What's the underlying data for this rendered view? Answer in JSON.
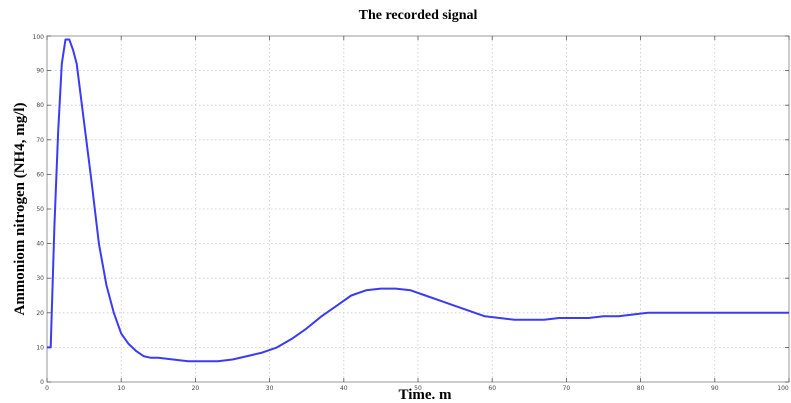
{
  "chart_data": {
    "type": "line",
    "title": "The recorded signal",
    "xlabel": "Time. m",
    "ylabel": "Ammoniom nitrogen (NH4, mg/l)",
    "xlim": [
      0,
      100
    ],
    "ylim": [
      0,
      100
    ],
    "xticks": [
      0,
      10,
      20,
      30,
      40,
      50,
      60,
      70,
      80,
      90,
      100
    ],
    "yticks": [
      0,
      10,
      20,
      30,
      40,
      50,
      60,
      70,
      80,
      90,
      100
    ],
    "xtick_labels": [
      "0",
      "10",
      "20",
      "30",
      "40",
      "50",
      "60",
      "70",
      "80",
      "90",
      "100"
    ],
    "ytick_labels": [
      "0",
      "10",
      "20",
      "30",
      "40",
      "50",
      "60",
      "70",
      "80",
      "90",
      "100"
    ],
    "grid": true,
    "color": "#3b3bf5",
    "series": [
      {
        "x": [
          0,
          0.5,
          1,
          1.5,
          2,
          2.5,
          3,
          3.5,
          4,
          5,
          6,
          7,
          8,
          9,
          10,
          11,
          12,
          13,
          14,
          15,
          17,
          19,
          21,
          23,
          25,
          27,
          29,
          31,
          33,
          35,
          37,
          39,
          41,
          43,
          45,
          47,
          49,
          51,
          53,
          55,
          57,
          59,
          61,
          63,
          65,
          67,
          69,
          71,
          73,
          75,
          77,
          79,
          81,
          85,
          90,
          95,
          100
        ],
        "y": [
          10,
          10,
          45,
          72,
          92,
          99,
          99,
          96,
          92,
          75,
          58,
          40,
          28,
          20,
          14,
          11,
          9,
          7.5,
          7,
          7,
          6.5,
          6,
          6,
          6,
          6.5,
          7.5,
          8.5,
          10,
          12.5,
          15.5,
          19,
          22,
          25,
          26.5,
          27,
          27,
          26.5,
          25,
          23.5,
          22,
          20.5,
          19,
          18.5,
          18,
          18,
          18,
          18.5,
          18.5,
          18.5,
          19,
          19,
          19.5,
          20,
          20,
          20,
          20,
          20
        ]
      }
    ]
  }
}
